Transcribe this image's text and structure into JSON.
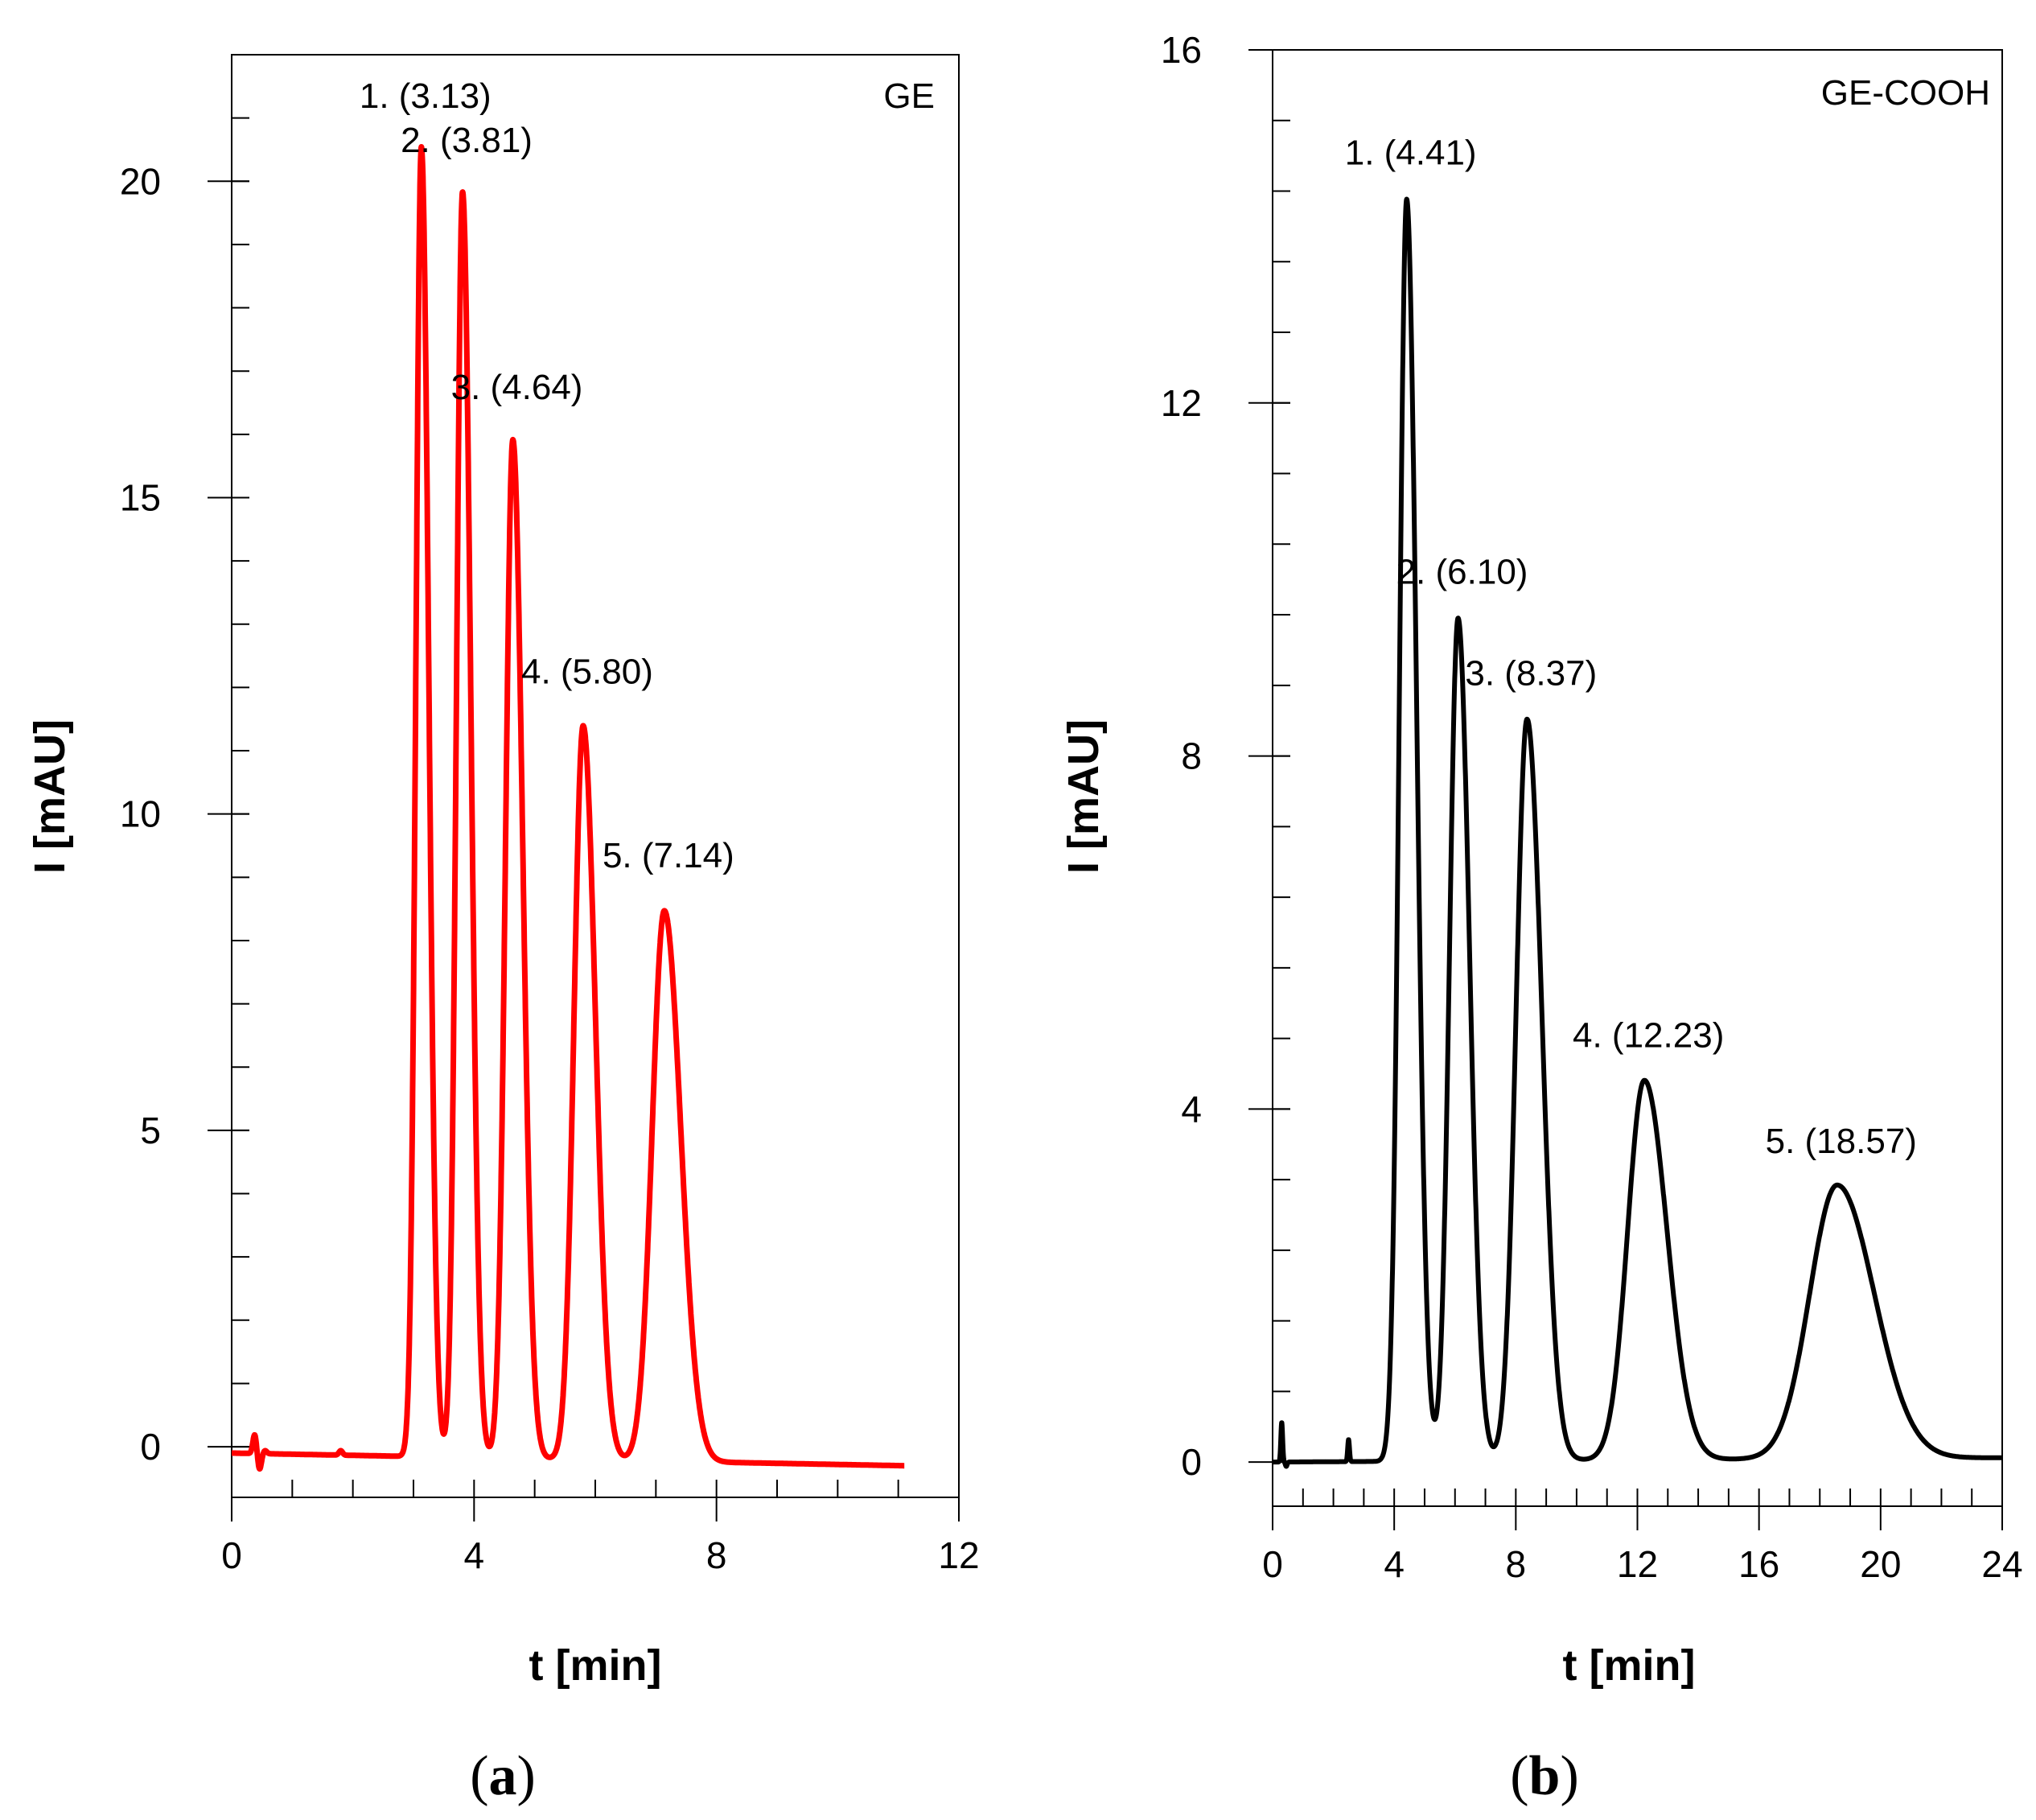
{
  "chart_data": [
    {
      "type": "line",
      "panel_label": "a",
      "sample_label": "GE",
      "xlabel": "t [min]",
      "ylabel": "I [mAU]",
      "xlim": [
        0,
        12
      ],
      "ylim": [
        -0.8,
        22
      ],
      "x_ticks": [
        0,
        4,
        8,
        12
      ],
      "x_minor_step": 1,
      "y_ticks": [
        0,
        5,
        10,
        15,
        20
      ],
      "y_minor_step": 1,
      "line_color": "#ff0000",
      "x_end": 11.1,
      "baseline": {
        "start": -0.1,
        "end": -0.3
      },
      "noise": [
        {
          "x": 0.38,
          "y": 0.3
        },
        {
          "x": 0.46,
          "y": -0.25
        },
        {
          "x": 0.55,
          "y": 0.05
        },
        {
          "x": 1.8,
          "y": 0.07
        }
      ],
      "peaks": [
        {
          "label": "1. (3.13)",
          "retention_time": 3.13,
          "height": 20.6,
          "width": 0.09
        },
        {
          "label": "2. (3.81)",
          "retention_time": 3.81,
          "height": 19.9,
          "width": 0.1
        },
        {
          "label": "3. (4.64)",
          "retention_time": 4.64,
          "height": 16.0,
          "width": 0.12
        },
        {
          "label": "4. (5.80)",
          "retention_time": 5.8,
          "height": 11.5,
          "width": 0.15
        },
        {
          "label": "5. (7.14)",
          "retention_time": 7.14,
          "height": 8.6,
          "width": 0.2
        }
      ]
    },
    {
      "type": "line",
      "panel_label": "b",
      "sample_label": "GE-COOH",
      "xlabel": "t [min]",
      "ylabel": "I [mAU]",
      "xlim": [
        0,
        24
      ],
      "ylim": [
        -0.5,
        16
      ],
      "x_ticks": [
        0,
        4,
        8,
        12,
        16,
        20,
        24
      ],
      "x_minor_step": 1,
      "y_ticks": [
        0,
        4,
        8,
        12,
        16
      ],
      "y_minor_step": 0.8,
      "line_color": "#000000",
      "x_end": 24,
      "baseline": {
        "start": 0.0,
        "end": 0.05
      },
      "noise": [
        {
          "x": 0.3,
          "y": 0.45
        },
        {
          "x": 0.45,
          "y": -0.05
        },
        {
          "x": 2.5,
          "y": 0.25
        }
      ],
      "peaks": [
        {
          "label": "1. (4.41)",
          "retention_time": 4.41,
          "height": 14.3,
          "width": 0.24
        },
        {
          "label": "2. (6.10)",
          "retention_time": 6.1,
          "height": 9.55,
          "width": 0.28
        },
        {
          "label": "3. (8.37)",
          "retention_time": 8.37,
          "height": 8.4,
          "width": 0.36
        },
        {
          "label": "4. (12.23)",
          "retention_time": 12.23,
          "height": 4.3,
          "width": 0.55
        },
        {
          "label": "5. (18.57)",
          "retention_time": 18.57,
          "height": 3.1,
          "width": 0.9
        }
      ]
    }
  ]
}
